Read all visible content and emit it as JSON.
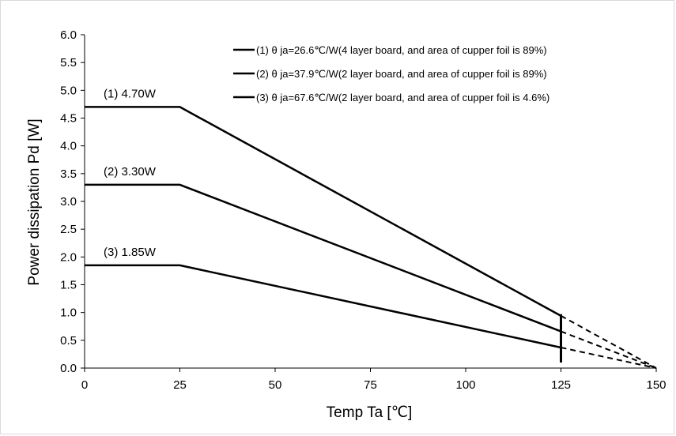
{
  "chart_data": {
    "type": "line",
    "title": "",
    "xlabel": "Temp Ta [℃]",
    "ylabel": "Power dissipation Pd [W]",
    "xlim": [
      0,
      150
    ],
    "ylim": [
      0,
      6.0
    ],
    "x_ticks": [
      "0",
      "25",
      "50",
      "75",
      "100",
      "125",
      "150"
    ],
    "y_ticks": [
      "0.0",
      "0.5",
      "1.0",
      "1.5",
      "2.0",
      "2.5",
      "3.0",
      "3.5",
      "4.0",
      "4.5",
      "5.0",
      "5.5",
      "6.0"
    ],
    "grid": false,
    "legend_position": "top-right",
    "series": [
      {
        "name": "(1) θ ja=26.6℃/W(4 layer board, and area of cupper foil is 89%)",
        "label": "(1) 4.70W",
        "points": [
          [
            0,
            4.7
          ],
          [
            25,
            4.7
          ],
          [
            125,
            0.94
          ]
        ],
        "extrapolated": [
          [
            125,
            0.94
          ],
          [
            150,
            0.0
          ]
        ]
      },
      {
        "name": "(2) θ ja=37.9℃/W(2 layer board, and area of cupper foil is 89%)",
        "label": "(2) 3.30W",
        "points": [
          [
            0,
            3.3
          ],
          [
            25,
            3.3
          ],
          [
            125,
            0.66
          ]
        ],
        "extrapolated": [
          [
            125,
            0.66
          ],
          [
            150,
            0.0
          ]
        ]
      },
      {
        "name": "(3) θ ja=67.6℃/W(2 layer board, and area of cupper foil is 4.6%)",
        "label": "(3) 1.85W",
        "points": [
          [
            0,
            1.85
          ],
          [
            25,
            1.85
          ],
          [
            125,
            0.37
          ]
        ],
        "extrapolated": [
          [
            125,
            0.37
          ],
          [
            150,
            0.0
          ]
        ]
      }
    ],
    "vertical_marker": {
      "x": 125,
      "y_range": [
        0.1,
        0.97
      ]
    }
  }
}
